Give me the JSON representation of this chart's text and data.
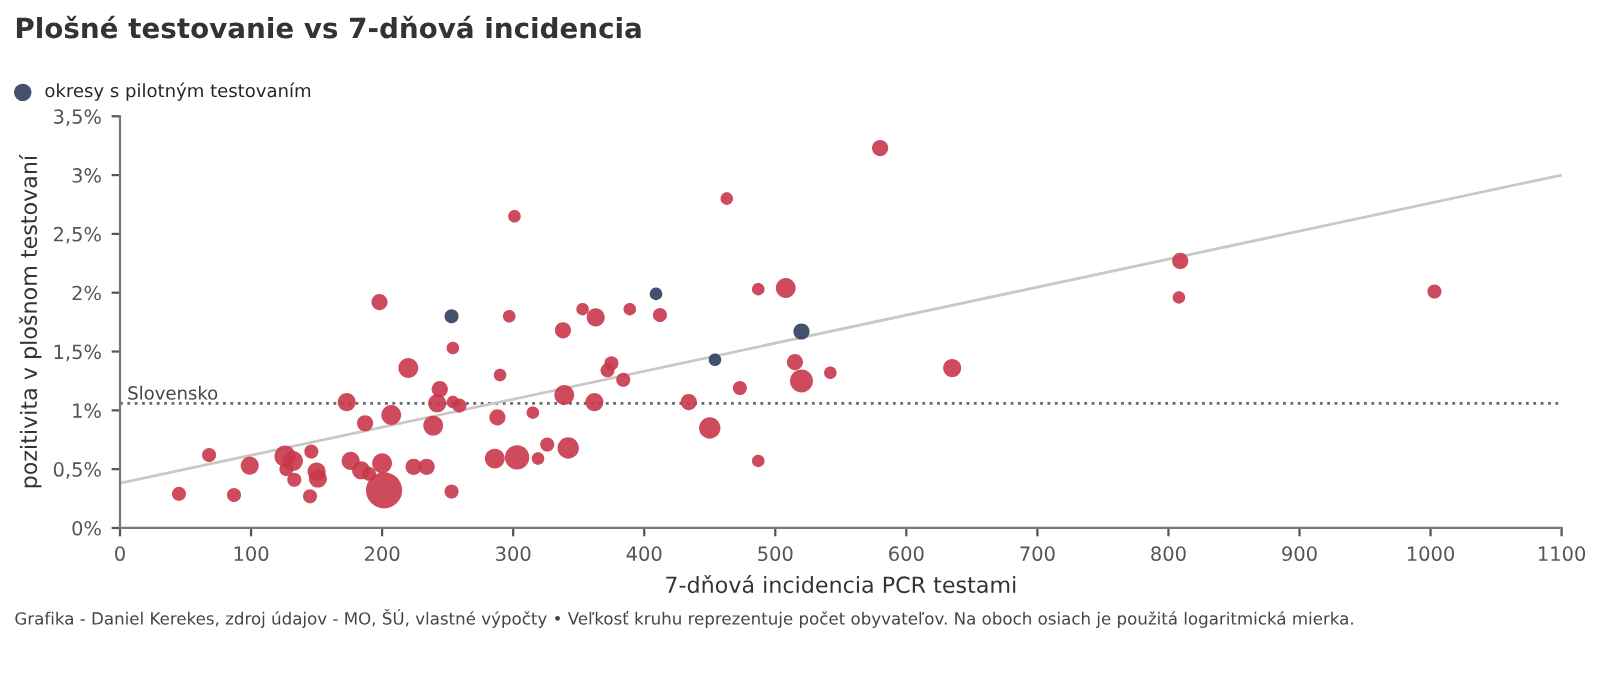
{
  "chart_data": {
    "type": "bubble",
    "title": "Plošné testovanie vs 7-dňová incidencia",
    "xlabel": "7-dňová incidencia PCR testami",
    "ylabel": "pozitivita v plošnom testovaní",
    "xlim": [
      0,
      1100
    ],
    "xticks": [
      0,
      100,
      200,
      300,
      400,
      500,
      600,
      700,
      800,
      900,
      1000,
      1100
    ],
    "ylim": [
      0,
      3.5
    ],
    "yticks": [
      {
        "value": 0,
        "label": "0%"
      },
      {
        "value": 0.5,
        "label": "0,5%"
      },
      {
        "value": 1,
        "label": "1%"
      },
      {
        "value": 1.5,
        "label": "1,5%"
      },
      {
        "value": 2,
        "label": "2%"
      },
      {
        "value": 2.5,
        "label": "2,5%"
      },
      {
        "value": 3,
        "label": "3%"
      },
      {
        "value": 3.5,
        "label": "3,5%"
      }
    ],
    "grid": false,
    "legend": "top left",
    "series": [
      {
        "color": "#c8374a",
        "x": [
          45,
          68,
          87,
          99,
          126,
          132,
          127,
          133,
          146,
          150,
          151,
          145,
          173,
          176,
          184,
          187,
          190,
          198,
          200,
          201.5,
          207,
          220,
          224,
          234,
          244,
          242,
          239,
          254,
          254,
          259,
          253,
          288,
          290,
          286,
          303,
          301,
          297,
          315,
          319,
          326,
          338,
          339,
          342,
          353,
          363,
          362,
          372,
          375,
          384,
          389,
          412,
          434,
          450,
          463,
          473,
          487,
          487,
          508,
          515,
          520,
          542,
          580,
          635,
          809,
          808,
          1003
        ],
        "values": [
          0.29,
          0.62,
          0.28,
          0.53,
          0.61,
          0.57,
          0.5,
          0.41,
          0.65,
          0.48,
          0.42,
          0.27,
          1.07,
          0.57,
          0.49,
          0.89,
          0.46,
          1.92,
          0.55,
          0.32,
          0.96,
          1.36,
          0.52,
          0.52,
          1.18,
          1.06,
          0.87,
          1.53,
          1.07,
          1.04,
          0.31,
          0.94,
          1.3,
          0.59,
          0.6,
          2.65,
          1.8,
          0.98,
          0.59,
          0.71,
          1.68,
          1.13,
          0.68,
          1.86,
          1.79,
          1.07,
          1.34,
          1.4,
          1.26,
          1.86,
          1.81,
          1.07,
          0.85,
          2.8,
          1.19,
          2.03,
          0.57,
          2.04,
          1.41,
          1.25,
          1.32,
          3.23,
          1.36,
          2.27,
          1.96,
          2.01
        ],
        "sizes": [
          0.15,
          0.15,
          0.15,
          0.25,
          0.35,
          0.3,
          0.15,
          0.15,
          0.15,
          0.25,
          0.25,
          0.15,
          0.25,
          0.25,
          0.25,
          0.2,
          0.15,
          0.2,
          0.3,
          1,
          0.3,
          0.3,
          0.2,
          0.2,
          0.2,
          0.25,
          0.3,
          0.12,
          0.12,
          0.15,
          0.15,
          0.2,
          0.12,
          0.3,
          0.45,
          0.12,
          0.12,
          0.12,
          0.12,
          0.15,
          0.2,
          0.3,
          0.35,
          0.12,
          0.25,
          0.25,
          0.15,
          0.15,
          0.15,
          0.12,
          0.15,
          0.2,
          0.35,
          0.12,
          0.15,
          0.12,
          0.12,
          0.3,
          0.2,
          0.4,
          0.12,
          0.2,
          0.25,
          0.2,
          0.12,
          0.15
        ]
      },
      {
        "name": "okresy s pilotným testovaním",
        "color": "#2d3e5c",
        "x": [
          253,
          409,
          454,
          520
        ],
        "values": [
          1.8,
          1.99,
          1.43,
          1.67
        ],
        "sizes": [
          0.15,
          0.12,
          0.12,
          0.2
        ]
      },
      {
        "type": "line",
        "color": "#c8c8c8",
        "x": [
          0,
          1100
        ],
        "values": [
          0.38,
          3.0
        ]
      }
    ],
    "ref_lines": [
      {
        "axis": "y",
        "value": 1.06,
        "label": "Slovensko",
        "color": "#666666",
        "line_style": "dotted"
      }
    ],
    "annotations": [
      "Grafika - Daniel Kerekes, zdroj údajov - MO, ŠÚ, vlastné výpočty • Veľkosť kruhu reprezentuje počet obyvateľov. Na oboch osiach je použitá logaritmická mierka."
    ]
  }
}
